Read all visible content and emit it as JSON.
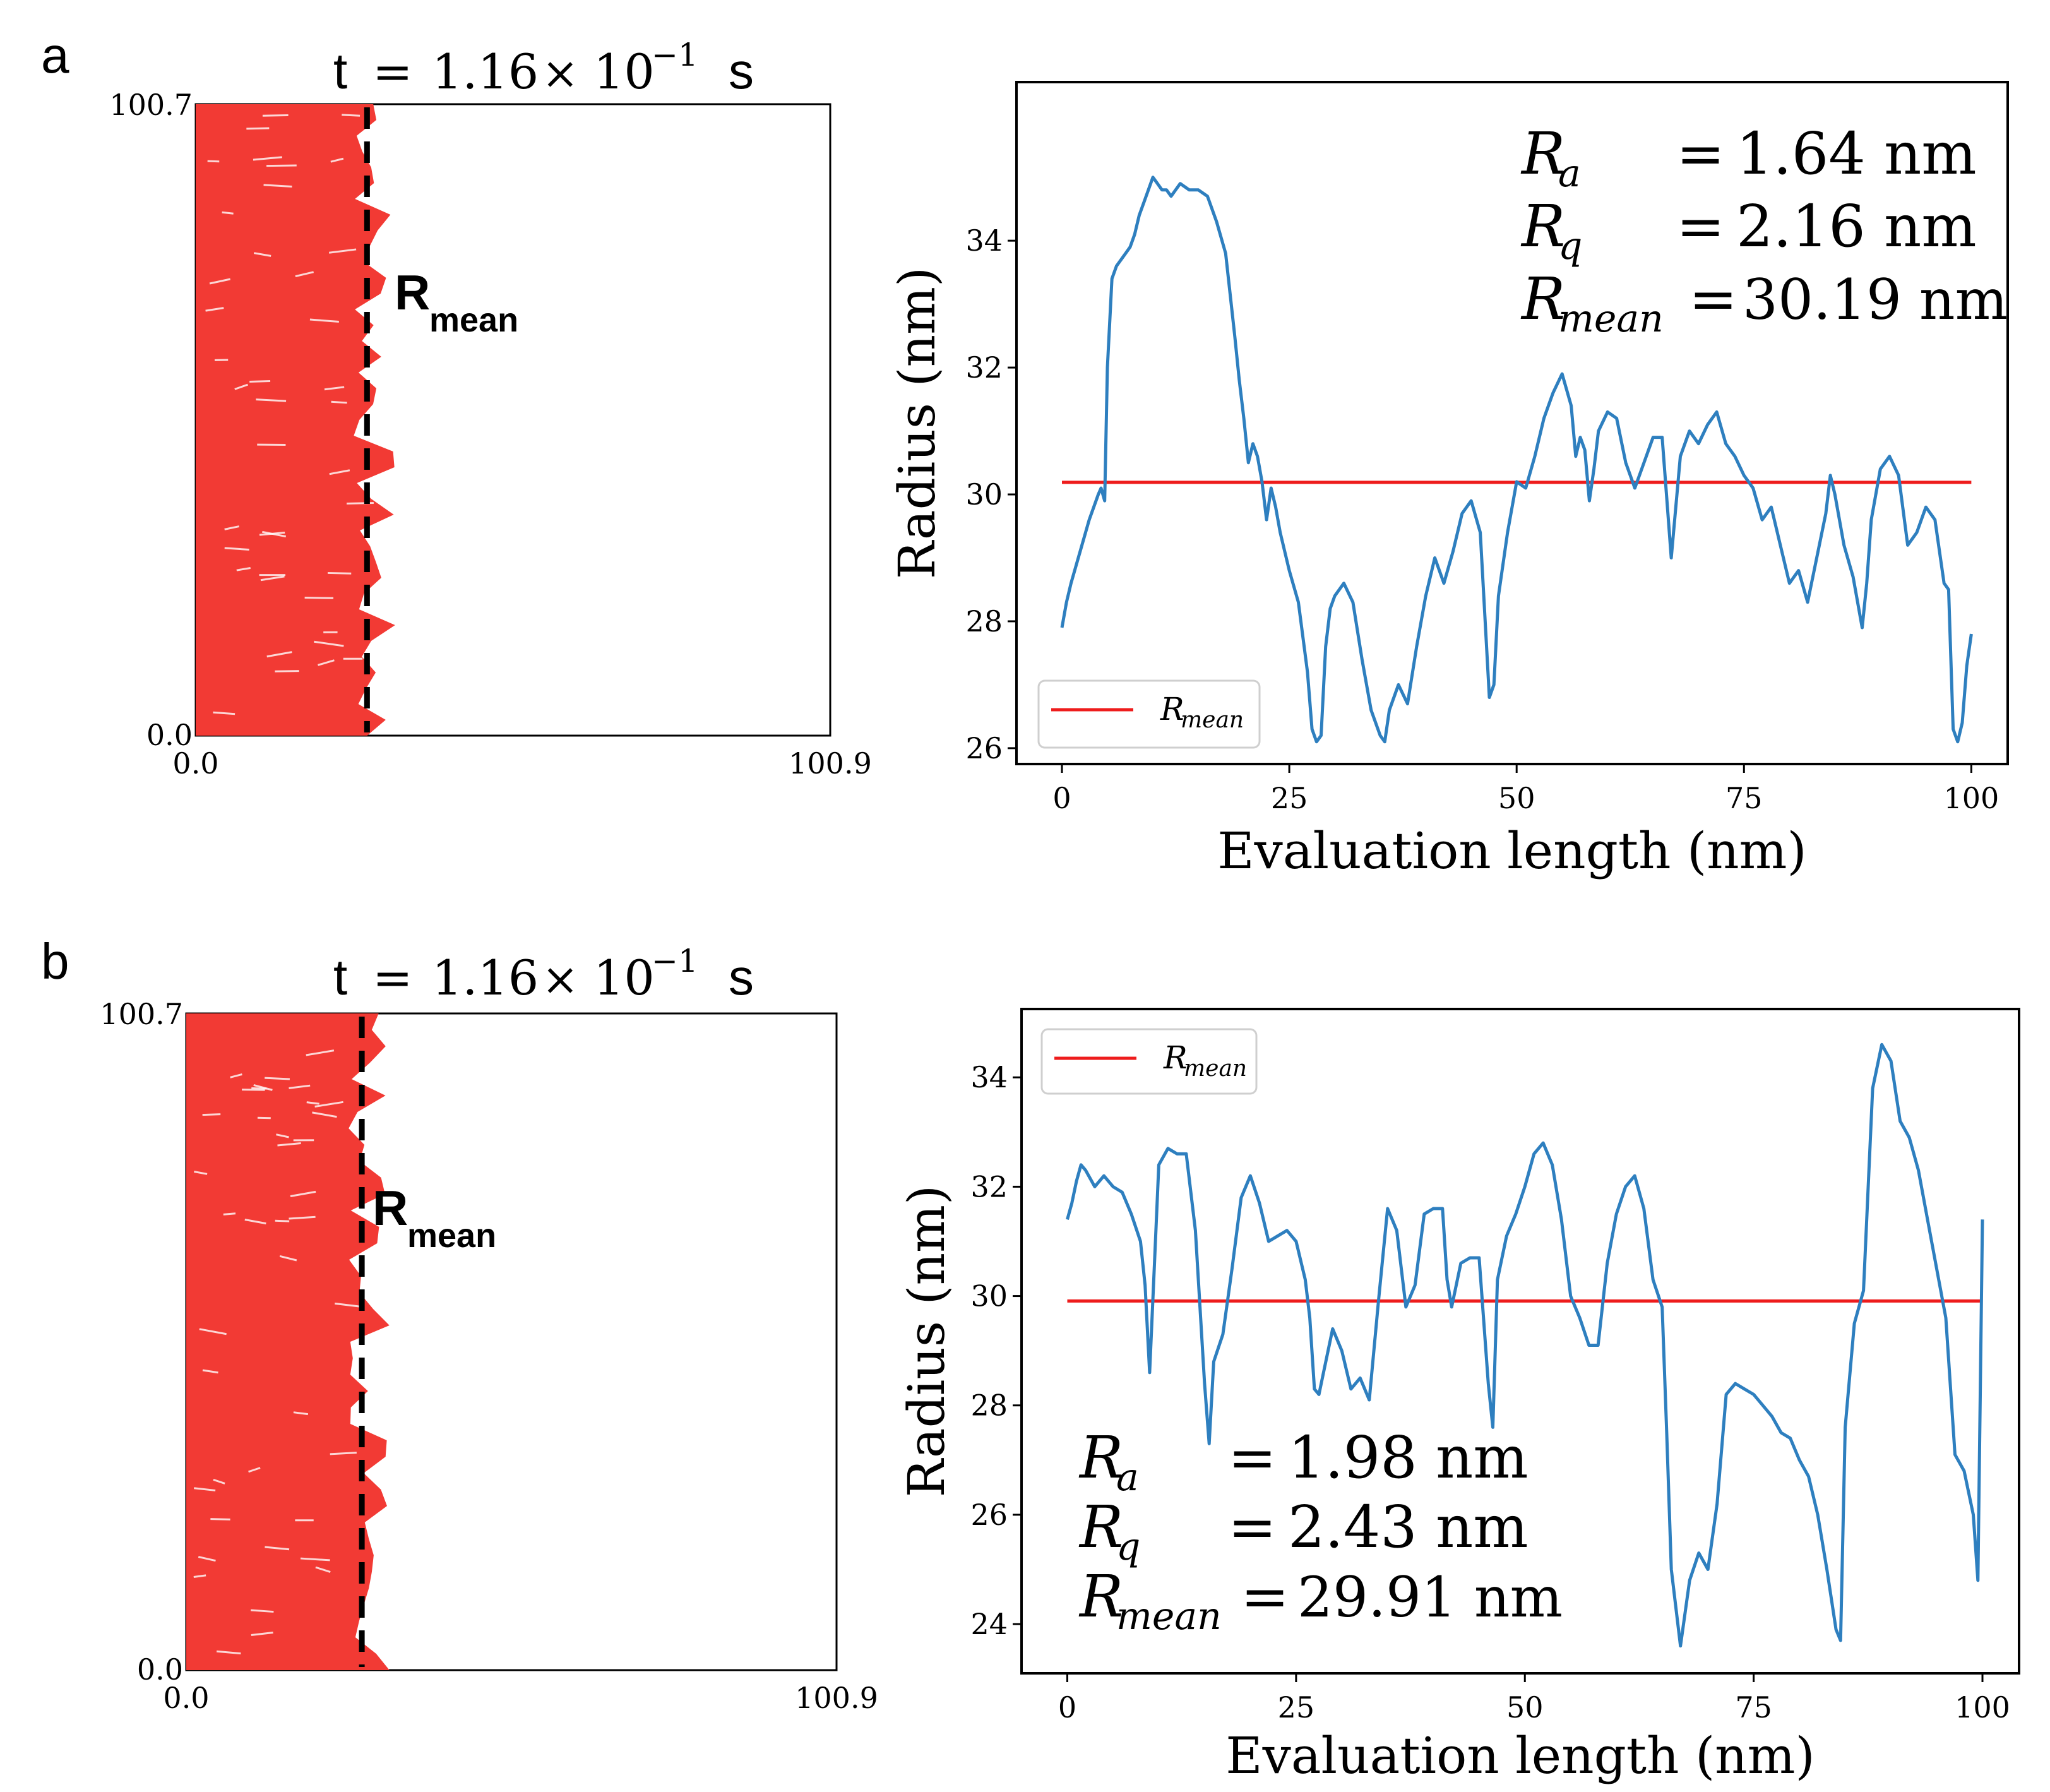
{
  "figure": {
    "panels": [
      {
        "label": "a",
        "time_title": {
          "prefix": "t",
          "eq": "=",
          "mantissa": "1.16",
          "times": "×",
          "base": "10",
          "exponent": "−1",
          "unit": "s"
        },
        "rmean_label": {
          "main": "R",
          "sub": "mean"
        },
        "sim_axes": {
          "y_top": "100.7",
          "y_bottom": "0.0",
          "x_left": "0.0",
          "x_right": "100.9"
        },
        "sim_front_fraction": 0.27,
        "stats": [
          {
            "sym": "R",
            "sub": "a",
            "eq": "=",
            "value": "1.64 nm"
          },
          {
            "sym": "R",
            "sub": "q",
            "eq": "=",
            "value": "2.16 nm"
          },
          {
            "sym": "R",
            "sub": "mean",
            "eq": "=",
            "value": "30.19 nm"
          }
        ]
      },
      {
        "label": "b",
        "time_title": {
          "prefix": "t",
          "eq": "=",
          "mantissa": "1.16",
          "times": "×",
          "base": "10",
          "exponent": "−1",
          "unit": "s"
        },
        "rmean_label": {
          "main": "R",
          "sub": "mean"
        },
        "sim_axes": {
          "y_top": "100.7",
          "y_bottom": "0.0",
          "x_left": "0.0",
          "x_right": "100.9"
        },
        "sim_front_fraction": 0.27,
        "stats": [
          {
            "sym": "R",
            "sub": "a",
            "eq": "=",
            "value": "1.98 nm"
          },
          {
            "sym": "R",
            "sub": "q",
            "eq": "=",
            "value": "2.43 nm"
          },
          {
            "sym": "R",
            "sub": "mean",
            "eq": "=",
            "value": "29.91 nm"
          }
        ]
      }
    ]
  },
  "chart_data": [
    {
      "type": "line",
      "panel": "a",
      "title": "",
      "xlabel": "Evaluation length (nm)",
      "ylabel": "Radius (nm)",
      "xlim": [
        -5,
        104
      ],
      "ylim": [
        25.75,
        36.5
      ],
      "xticks": [
        0,
        25,
        50,
        75,
        100
      ],
      "yticks": [
        26,
        28,
        30,
        32,
        34
      ],
      "legend": {
        "position": "lower-left",
        "label_main": "R",
        "label_sub": "mean"
      },
      "series": [
        {
          "name": "Radius",
          "color": "#2e7fbf",
          "x": [
            0,
            0.5,
            1,
            2,
            3,
            4,
            4.3,
            4.7,
            5,
            5.5,
            6,
            6.5,
            7,
            7.5,
            8,
            8.5,
            9,
            9.5,
            10,
            10.5,
            11,
            11.5,
            12,
            13,
            14,
            15,
            16,
            17,
            18,
            19,
            19.5,
            20,
            20.5,
            21,
            21.5,
            22,
            22.5,
            23,
            23.5,
            24,
            24.5,
            25,
            26,
            27,
            27.5,
            28,
            28.5,
            29,
            29.5,
            30,
            31,
            32,
            33,
            34,
            35,
            35.5,
            36,
            37,
            38,
            39,
            40,
            41,
            42,
            43,
            44,
            45,
            46,
            47,
            47.5,
            48,
            49,
            50,
            51,
            52,
            53,
            54,
            55,
            56,
            56.5,
            57,
            57.5,
            58,
            58.5,
            59,
            60,
            61,
            62,
            63,
            64,
            65,
            66,
            67,
            68,
            69,
            70,
            71,
            72,
            73,
            74,
            75,
            76,
            77,
            78,
            79,
            80,
            81,
            82,
            83,
            84,
            84.5,
            85,
            86,
            87,
            88,
            88.5,
            89,
            90,
            91,
            92,
            93,
            94,
            95,
            96,
            97,
            97.5,
            98,
            98.5,
            99,
            99.5,
            100
          ],
          "values": [
            27.9,
            28.3,
            28.6,
            29.1,
            29.6,
            30.0,
            30.1,
            29.9,
            32.0,
            33.4,
            33.6,
            33.7,
            33.8,
            33.9,
            34.1,
            34.4,
            34.6,
            34.8,
            35.0,
            34.9,
            34.8,
            34.8,
            34.7,
            34.9,
            34.8,
            34.8,
            34.7,
            34.3,
            33.8,
            32.5,
            31.8,
            31.2,
            30.5,
            30.8,
            30.6,
            30.2,
            29.6,
            30.1,
            29.8,
            29.4,
            29.1,
            28.8,
            28.3,
            27.2,
            26.3,
            26.1,
            26.2,
            27.6,
            28.2,
            28.4,
            28.6,
            28.3,
            27.4,
            26.6,
            26.2,
            26.1,
            26.6,
            27.0,
            26.7,
            27.6,
            28.4,
            29.0,
            28.6,
            29.1,
            29.7,
            29.9,
            29.4,
            26.8,
            27.0,
            28.4,
            29.4,
            30.2,
            30.1,
            30.6,
            31.2,
            31.6,
            31.9,
            31.4,
            30.6,
            30.9,
            30.7,
            29.9,
            30.4,
            31.0,
            31.3,
            31.2,
            30.5,
            30.1,
            30.5,
            30.9,
            30.9,
            29.0,
            30.6,
            31.0,
            30.8,
            31.1,
            31.3,
            30.8,
            30.6,
            30.3,
            30.1,
            29.6,
            29.8,
            29.2,
            28.6,
            28.8,
            28.3,
            29.0,
            29.7,
            30.3,
            30.0,
            29.2,
            28.7,
            27.9,
            28.6,
            29.6,
            30.4,
            30.6,
            30.3,
            29.2,
            29.4,
            29.8,
            29.6,
            28.6,
            28.5,
            26.3,
            26.1,
            26.4,
            27.3,
            27.8
          ]
        },
        {
          "name": "R_mean",
          "color": "#ee1c1c",
          "constant": 30.19,
          "x_range": [
            0,
            100
          ]
        }
      ]
    },
    {
      "type": "line",
      "panel": "b",
      "title": "",
      "xlabel": "Evaluation length (nm)",
      "ylabel": "Radius (nm)",
      "xlim": [
        -5,
        104
      ],
      "ylim": [
        23.1,
        35.25
      ],
      "xticks": [
        0,
        25,
        50,
        75,
        100
      ],
      "yticks": [
        24,
        26,
        28,
        30,
        32,
        34
      ],
      "legend": {
        "position": "upper-left",
        "label_main": "R",
        "label_sub": "mean"
      },
      "series": [
        {
          "name": "Radius",
          "color": "#2e7fbf",
          "x": [
            0,
            0.5,
            1,
            1.5,
            2,
            3,
            4,
            5,
            6,
            7,
            8,
            8.5,
            9,
            9.5,
            10,
            11,
            12,
            13,
            14,
            15,
            15.5,
            16,
            17,
            18,
            19,
            20,
            21,
            22,
            23,
            24,
            25,
            26,
            26.5,
            27,
            27.5,
            28,
            29,
            30,
            31,
            32,
            33,
            34,
            35,
            36,
            37,
            38,
            39,
            40,
            41,
            41.5,
            42,
            43,
            44,
            45,
            46,
            46.5,
            47,
            48,
            49,
            50,
            51,
            52,
            53,
            54,
            55,
            56,
            57,
            58,
            59,
            60,
            61,
            62,
            63,
            64,
            65,
            65.5,
            66,
            67,
            68,
            69,
            70,
            71,
            72,
            73,
            74,
            75,
            76,
            77,
            78,
            79,
            80,
            81,
            82,
            83,
            84,
            84.5,
            85,
            86,
            87,
            88,
            89,
            90,
            91,
            92,
            93,
            94,
            95,
            96,
            97,
            98,
            99,
            99.5,
            100
          ],
          "values": [
            31.4,
            31.7,
            32.1,
            32.4,
            32.3,
            32.0,
            32.2,
            32.0,
            31.9,
            31.5,
            31.0,
            30.2,
            28.6,
            30.5,
            32.4,
            32.7,
            32.6,
            32.6,
            31.2,
            28.4,
            27.3,
            28.8,
            29.3,
            30.5,
            31.8,
            32.2,
            31.7,
            31.0,
            31.1,
            31.2,
            31.0,
            30.3,
            29.6,
            28.3,
            28.2,
            28.6,
            29.4,
            29.0,
            28.3,
            28.5,
            28.1,
            29.9,
            31.6,
            31.2,
            29.8,
            30.2,
            31.5,
            31.6,
            31.6,
            30.3,
            29.8,
            30.6,
            30.7,
            30.7,
            28.4,
            27.6,
            30.3,
            31.1,
            31.5,
            32.0,
            32.6,
            32.8,
            32.4,
            31.4,
            30.0,
            29.6,
            29.1,
            29.1,
            30.6,
            31.5,
            32.0,
            32.2,
            31.6,
            30.3,
            29.8,
            27.5,
            25.0,
            23.6,
            24.8,
            25.3,
            25.0,
            26.2,
            28.2,
            28.4,
            28.3,
            28.2,
            28.0,
            27.8,
            27.5,
            27.4,
            27.0,
            26.7,
            26.0,
            25.0,
            23.9,
            23.7,
            27.6,
            29.5,
            30.1,
            33.8,
            34.6,
            34.3,
            33.2,
            32.9,
            32.3,
            31.4,
            30.5,
            29.6,
            27.1,
            26.8,
            26.0,
            24.8,
            31.4
          ]
        },
        {
          "name": "R_mean",
          "color": "#ee1c1c",
          "constant": 29.91,
          "x_range": [
            0,
            100
          ]
        }
      ]
    }
  ]
}
